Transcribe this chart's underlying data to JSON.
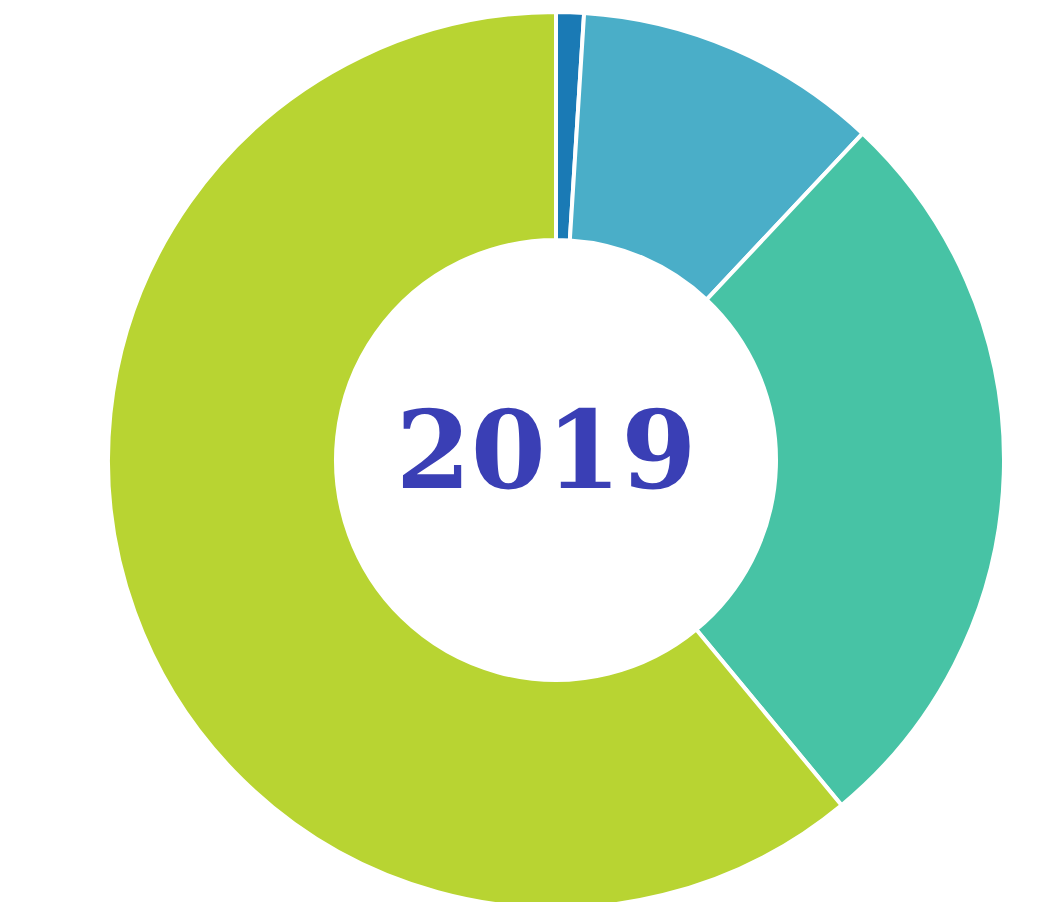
{
  "chart_data": {
    "type": "donut",
    "title": "2019",
    "categories": [
      null,
      null,
      null,
      null
    ],
    "values": [
      1,
      11,
      27,
      61
    ],
    "colors": [
      "#1a7ab5",
      "#4aaec8",
      "#47c3a5",
      "#b8d432"
    ]
  }
}
